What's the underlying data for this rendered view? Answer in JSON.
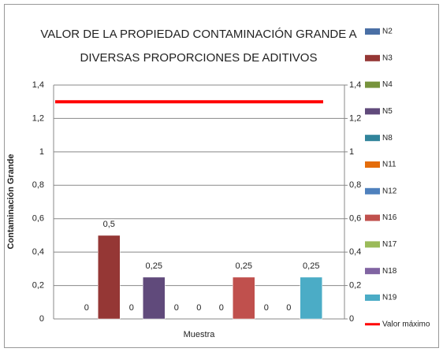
{
  "chart_data": {
    "type": "bar",
    "title": [
      "VALOR DE LA PROPIEDAD CONTAMINACIÓN GRANDE A",
      "DIVERSAS PROPORCIONES DE ADITIVOS"
    ],
    "y_label": "Contaminación Grande",
    "categories": [
      "Muestra"
    ],
    "series": [
      {
        "name": "N2",
        "color": "#4a6fa5",
        "values": [
          0
        ],
        "value_labels": [
          "0"
        ]
      },
      {
        "name": "N3",
        "color": "#953735",
        "values": [
          0.5
        ],
        "value_labels": [
          "0,5"
        ]
      },
      {
        "name": "N4",
        "color": "#77933c",
        "values": [
          0
        ],
        "value_labels": [
          "0"
        ]
      },
      {
        "name": "N5",
        "color": "#604a7b",
        "values": [
          0.25
        ],
        "value_labels": [
          "0,25"
        ]
      },
      {
        "name": "N8",
        "color": "#31849b",
        "values": [
          0
        ],
        "value_labels": [
          "0"
        ]
      },
      {
        "name": "N11",
        "color": "#e46c0a",
        "values": [
          0
        ],
        "value_labels": [
          "0"
        ]
      },
      {
        "name": "N12",
        "color": "#4f81bd",
        "values": [
          0
        ],
        "value_labels": [
          "0"
        ]
      },
      {
        "name": "N16",
        "color": "#c0504d",
        "values": [
          0.25
        ],
        "value_labels": [
          "0,25"
        ]
      },
      {
        "name": "N17",
        "color": "#9bbb59",
        "values": [
          0
        ],
        "value_labels": [
          "0"
        ]
      },
      {
        "name": "N18",
        "color": "#8064a2",
        "values": [
          0
        ],
        "value_labels": [
          "0"
        ]
      },
      {
        "name": "N19",
        "color": "#4bacc6",
        "values": [
          0.25
        ],
        "value_labels": [
          "0,25"
        ]
      },
      {
        "name": "Valor máximo",
        "color": "#ff0000",
        "type": "line",
        "values": [
          1.3
        ]
      }
    ],
    "ylim": [
      0,
      1.4
    ],
    "yticks": [
      0,
      {
        "value": 0.2,
        "label": "0,2"
      },
      {
        "value": 0.4,
        "label": "0,4"
      },
      {
        "value": 0.6,
        "label": "0,6"
      },
      {
        "value": 0.8,
        "label": "0,8"
      },
      1,
      {
        "value": 1.2,
        "label": "1,2"
      },
      {
        "value": 1.4,
        "label": "1,4"
      }
    ],
    "y2lim": [
      0,
      1.4
    ],
    "y2ticks": [
      0,
      {
        "value": 0.2,
        "label": "0,2"
      },
      {
        "value": 0.4,
        "label": "0,4"
      },
      {
        "value": 0.6,
        "label": "0,6"
      },
      {
        "value": 0.8,
        "label": "0,8"
      },
      1,
      {
        "value": 1.2,
        "label": "1,2"
      },
      {
        "value": 1.4,
        "label": "1,4"
      }
    ],
    "grid": true,
    "legend": "right"
  }
}
